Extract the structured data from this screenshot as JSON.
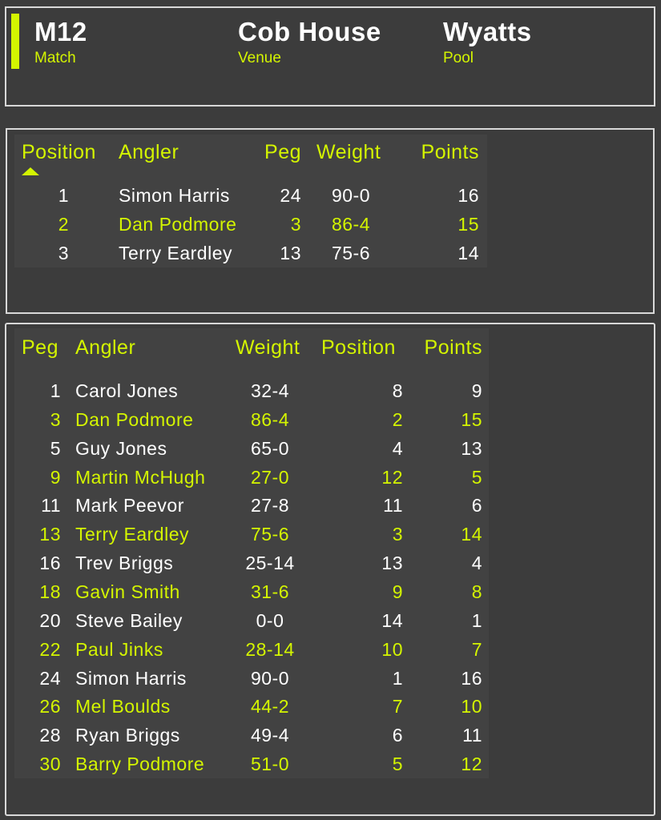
{
  "accent_color": "#d4f500",
  "header": {
    "match": {
      "value": "M12",
      "label": "Match"
    },
    "venue": {
      "value": "Cob House",
      "label": "Venue"
    },
    "pool": {
      "value": "Wyatts",
      "label": "Pool"
    }
  },
  "results": {
    "columns": {
      "position": "Position",
      "angler": "Angler",
      "peg": "Peg",
      "weight": "Weight",
      "points": "Points"
    },
    "sort_icon": "triangle-up-icon",
    "rows": [
      {
        "position": "1",
        "angler": "Simon Harris",
        "peg": "24",
        "weight": "90-0",
        "points": "16"
      },
      {
        "position": "2",
        "angler": "Dan Podmore",
        "peg": "3",
        "weight": "86-4",
        "points": "15"
      },
      {
        "position": "3",
        "angler": "Terry Eardley",
        "peg": "13",
        "weight": "75-6",
        "points": "14"
      }
    ]
  },
  "pegs": {
    "columns": {
      "peg": "Peg",
      "angler": "Angler",
      "weight": "Weight",
      "position": "Position",
      "points": "Points"
    },
    "rows": [
      {
        "peg": "1",
        "angler": "Carol Jones",
        "weight": "32-4",
        "position": "8",
        "points": "9"
      },
      {
        "peg": "3",
        "angler": "Dan Podmore",
        "weight": "86-4",
        "position": "2",
        "points": "15"
      },
      {
        "peg": "5",
        "angler": "Guy Jones",
        "weight": "65-0",
        "position": "4",
        "points": "13"
      },
      {
        "peg": "9",
        "angler": "Martin McHugh",
        "weight": "27-0",
        "position": "12",
        "points": "5"
      },
      {
        "peg": "11",
        "angler": "Mark Peevor",
        "weight": "27-8",
        "position": "11",
        "points": "6"
      },
      {
        "peg": "13",
        "angler": "Terry Eardley",
        "weight": "75-6",
        "position": "3",
        "points": "14"
      },
      {
        "peg": "16",
        "angler": "Trev Briggs",
        "weight": "25-14",
        "position": "13",
        "points": "4"
      },
      {
        "peg": "18",
        "angler": "Gavin Smith",
        "weight": "31-6",
        "position": "9",
        "points": "8"
      },
      {
        "peg": "20",
        "angler": "Steve Bailey",
        "weight": "0-0",
        "position": "14",
        "points": "1"
      },
      {
        "peg": "22",
        "angler": "Paul Jinks",
        "weight": "28-14",
        "position": "10",
        "points": "7"
      },
      {
        "peg": "24",
        "angler": "Simon Harris",
        "weight": "90-0",
        "position": "1",
        "points": "16"
      },
      {
        "peg": "26",
        "angler": "Mel Boulds",
        "weight": "44-2",
        "position": "7",
        "points": "10"
      },
      {
        "peg": "28",
        "angler": "Ryan Briggs",
        "weight": "49-4",
        "position": "6",
        "points": "11"
      },
      {
        "peg": "30",
        "angler": "Barry Podmore",
        "weight": "51-0",
        "position": "5",
        "points": "12"
      }
    ]
  }
}
